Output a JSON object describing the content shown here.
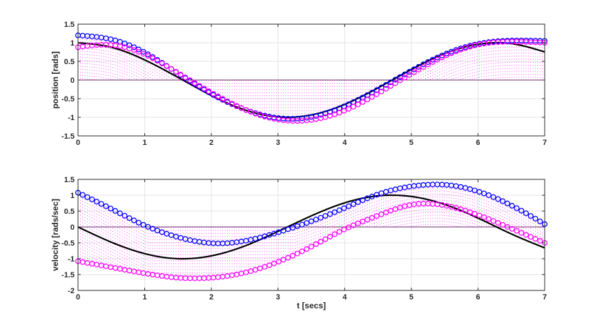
{
  "chart_data": [
    {
      "type": "line",
      "title": "",
      "xlabel": "",
      "ylabel": "position [rads]",
      "xlim": [
        0,
        7
      ],
      "ylim": [
        -1.5,
        1.5
      ],
      "xticks": [
        "0",
        "1",
        "2",
        "3",
        "4",
        "5",
        "6",
        "7"
      ],
      "yticks": [
        "-1.5",
        "-1",
        "-0.5",
        "0",
        "0.5",
        "1",
        "1.5"
      ],
      "grid": true,
      "x_samples": [
        0,
        0.5,
        1,
        1.5,
        2,
        2.5,
        3,
        3.5,
        4,
        4.5,
        5,
        5.5,
        6,
        6.5,
        7
      ],
      "series": [
        {
          "color": "#000000",
          "style": "line",
          "values": [
            1.0,
            0.878,
            0.54,
            0.071,
            -0.416,
            -0.801,
            -0.99,
            -0.936,
            -0.654,
            -0.211,
            0.284,
            0.709,
            0.96,
            0.977,
            0.754
          ]
        },
        {
          "color": "#0000ff",
          "style": "circle",
          "values": [
            1.2,
            1.09,
            0.74,
            0.18,
            -0.37,
            -0.79,
            -1.02,
            -0.99,
            -0.7,
            -0.25,
            0.25,
            0.69,
            0.97,
            1.06,
            1.05
          ]
        },
        {
          "color": "#ff00ff",
          "style": "circle",
          "values": [
            0.88,
            0.94,
            0.69,
            0.19,
            -0.34,
            -0.79,
            -1.06,
            -1.07,
            -0.82,
            -0.36,
            0.17,
            0.64,
            0.95,
            1.03,
            1.0
          ]
        }
      ]
    },
    {
      "type": "line",
      "title": "",
      "xlabel": "t [secs]",
      "ylabel": "velocity [rads/sec]",
      "xlim": [
        0,
        7
      ],
      "ylim": [
        -2,
        1.5
      ],
      "xticks": [
        "0",
        "1",
        "2",
        "3",
        "4",
        "5",
        "6",
        "7"
      ],
      "yticks": [
        "-2",
        "-1.5",
        "-1",
        "-0.5",
        "0",
        "0.5",
        "1",
        "1.5"
      ],
      "grid": true,
      "x_samples": [
        0,
        0.5,
        1,
        1.5,
        2,
        2.5,
        3,
        3.5,
        4,
        4.5,
        5,
        5.5,
        6,
        6.5,
        7
      ],
      "series": [
        {
          "color": "#000000",
          "style": "line",
          "values": [
            0.0,
            -0.48,
            -0.84,
            -1.0,
            -0.91,
            -0.6,
            -0.14,
            0.35,
            0.76,
            0.98,
            0.96,
            0.71,
            0.28,
            -0.22,
            -0.66
          ]
        },
        {
          "color": "#0000ff",
          "style": "circle",
          "values": [
            1.08,
            0.57,
            0.05,
            -0.32,
            -0.51,
            -0.44,
            -0.17,
            0.18,
            0.6,
            1.03,
            1.28,
            1.33,
            1.12,
            0.68,
            0.09
          ]
        },
        {
          "color": "#ff00ff",
          "style": "circle",
          "values": [
            -1.08,
            -1.27,
            -1.46,
            -1.6,
            -1.6,
            -1.44,
            -1.1,
            -0.62,
            -0.07,
            0.36,
            0.7,
            0.68,
            0.38,
            -0.05,
            -0.5
          ]
        }
      ]
    }
  ]
}
